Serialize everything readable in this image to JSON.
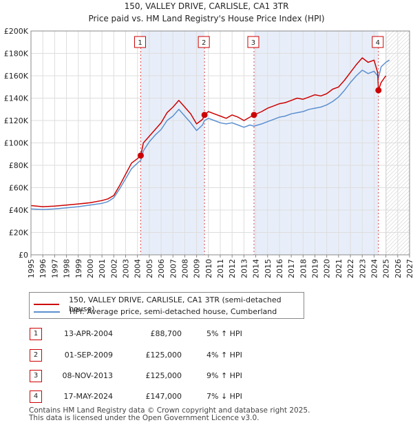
{
  "chart_data": {
    "type": "line",
    "title": "150, VALLEY DRIVE, CARLISLE, CA1 3TR",
    "subtitle": "Price paid vs. HM Land Registry's House Price Index (HPI)",
    "ylim": [
      0,
      200000
    ],
    "xlim": [
      1995,
      2027
    ],
    "y_ticks": [
      0,
      20000,
      40000,
      60000,
      80000,
      100000,
      120000,
      140000,
      160000,
      180000,
      200000
    ],
    "y_tick_labels": [
      "£0",
      "£20K",
      "£40K",
      "£60K",
      "£80K",
      "£100K",
      "£120K",
      "£140K",
      "£160K",
      "£180K",
      "£200K"
    ],
    "x_ticks": [
      "1995",
      "1996",
      "1997",
      "1998",
      "1999",
      "2000",
      "2001",
      "2002",
      "2003",
      "2004",
      "2005",
      "2006",
      "2007",
      "2008",
      "2009",
      "2010",
      "2011",
      "2012",
      "2013",
      "2014",
      "2015",
      "2016",
      "2017",
      "2018",
      "2019",
      "2020",
      "2021",
      "2022",
      "2023",
      "2024",
      "2025",
      "2026",
      "2027"
    ],
    "forecast_from": 2025.0,
    "shaded_ranges": [
      [
        2004.28,
        2009.67
      ],
      [
        2013.85,
        2024.37
      ]
    ],
    "series": [
      {
        "name": "150, VALLEY DRIVE, CARLISLE, CA1 3TR (semi-detached house)",
        "color": "#cc0000",
        "x": [
          1995.0,
          1996.0,
          1997.0,
          1998.0,
          1999.0,
          2000.0,
          2001.0,
          2001.5,
          2002.0,
          2002.5,
          2003.0,
          2003.5,
          2004.0,
          2004.28,
          2004.5,
          2005.0,
          2005.5,
          2006.0,
          2006.5,
          2007.0,
          2007.5,
          2008.0,
          2008.5,
          2009.0,
          2009.5,
          2009.67,
          2010.0,
          2010.5,
          2011.0,
          2011.5,
          2012.0,
          2012.5,
          2013.0,
          2013.5,
          2013.85,
          2014.5,
          2015.0,
          2015.5,
          2016.0,
          2016.5,
          2017.0,
          2017.5,
          2018.0,
          2018.5,
          2019.0,
          2019.5,
          2020.0,
          2020.5,
          2021.0,
          2021.5,
          2022.0,
          2022.5,
          2023.0,
          2023.5,
          2024.0,
          2024.3,
          2024.37,
          2024.6,
          2025.0
        ],
        "values": [
          44000,
          43000,
          43500,
          44500,
          45500,
          46500,
          48500,
          50000,
          53000,
          62000,
          72000,
          82000,
          86000,
          88700,
          100000,
          106000,
          112000,
          118000,
          127000,
          132000,
          138000,
          132000,
          126000,
          117000,
          121000,
          125000,
          128000,
          126000,
          124000,
          122000,
          125000,
          123000,
          120000,
          123000,
          125000,
          128000,
          131000,
          133000,
          135000,
          136000,
          138000,
          140000,
          139000,
          141000,
          143000,
          142000,
          144000,
          148000,
          150000,
          156000,
          163000,
          170000,
          176000,
          172000,
          174000,
          163000,
          147000,
          154000,
          160000
        ]
      },
      {
        "name": "HPI: Average price, semi-detached house, Cumberland",
        "color": "#5b8fd0",
        "x": [
          1995.0,
          1996.0,
          1997.0,
          1998.0,
          1999.0,
          2000.0,
          2001.0,
          2001.5,
          2002.0,
          2002.5,
          2003.0,
          2003.5,
          2004.0,
          2004.28,
          2004.5,
          2005.0,
          2005.5,
          2006.0,
          2006.5,
          2007.0,
          2007.5,
          2008.0,
          2008.5,
          2009.0,
          2009.5,
          2009.67,
          2010.0,
          2010.5,
          2011.0,
          2011.5,
          2012.0,
          2012.5,
          2013.0,
          2013.5,
          2013.85,
          2014.5,
          2015.0,
          2015.5,
          2016.0,
          2016.5,
          2017.0,
          2017.5,
          2018.0,
          2018.5,
          2019.0,
          2019.5,
          2020.0,
          2020.5,
          2021.0,
          2021.5,
          2022.0,
          2022.5,
          2023.0,
          2023.5,
          2024.0,
          2024.3,
          2024.37,
          2024.6,
          2025.0,
          2025.3
        ],
        "values": [
          41000,
          40500,
          41000,
          42000,
          43000,
          44500,
          46000,
          47500,
          51000,
          59000,
          68000,
          77000,
          82000,
          84500,
          93000,
          101000,
          107000,
          112000,
          120000,
          124000,
          130000,
          124000,
          118000,
          111000,
          116000,
          120000,
          122000,
          120000,
          118000,
          117000,
          118000,
          116000,
          114000,
          116000,
          115000,
          117000,
          119000,
          121000,
          123000,
          124000,
          126000,
          127000,
          128000,
          130000,
          131000,
          132000,
          134000,
          137000,
          141000,
          147000,
          154000,
          160000,
          165000,
          162000,
          164000,
          160000,
          158000,
          168000,
          172000,
          174000
        ]
      }
    ],
    "transactions": [
      {
        "n": "1",
        "x": 2004.28,
        "y": 88700
      },
      {
        "n": "2",
        "x": 2009.67,
        "y": 125000
      },
      {
        "n": "3",
        "x": 2013.85,
        "y": 125000
      },
      {
        "n": "4",
        "x": 2024.37,
        "y": 147000
      }
    ]
  },
  "legend": {
    "property_label": "150, VALLEY DRIVE, CARLISLE, CA1 3TR (semi-detached house)",
    "hpi_label": "HPI: Average price, semi-detached house, Cumberland"
  },
  "table": [
    {
      "n": "1",
      "date": "13-APR-2004",
      "price": "£88,700",
      "hpi": "5% ↑ HPI"
    },
    {
      "n": "2",
      "date": "01-SEP-2009",
      "price": "£125,000",
      "hpi": "4% ↑ HPI"
    },
    {
      "n": "3",
      "date": "08-NOV-2013",
      "price": "£125,000",
      "hpi": "9% ↑ HPI"
    },
    {
      "n": "4",
      "date": "17-MAY-2024",
      "price": "£147,000",
      "hpi": "7% ↓ HPI"
    }
  ],
  "footer": {
    "line1": "Contains HM Land Registry data © Crown copyright and database right 2025.",
    "line2": "This data is licensed under the Open Government Licence v3.0."
  }
}
